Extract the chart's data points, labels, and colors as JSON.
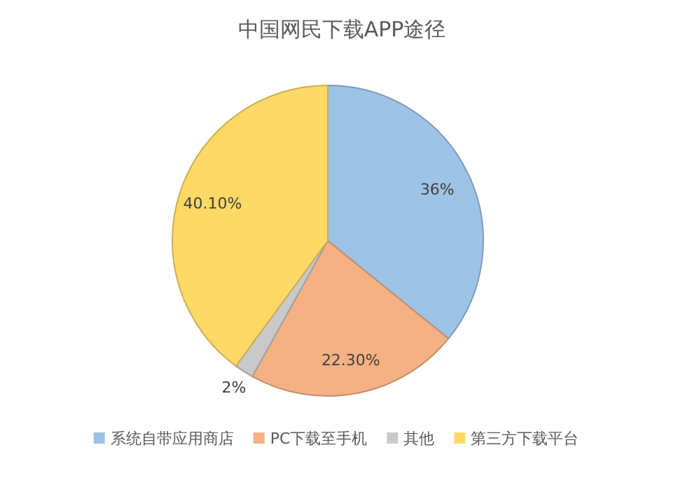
{
  "chart_data": {
    "type": "pie",
    "title": "中国网民下载APP途径",
    "categories": [
      "系统自带应用商店",
      "PC下载至手机",
      "其他",
      "第三方下载平台"
    ],
    "values": [
      36,
      22.3,
      2,
      40.1
    ],
    "value_labels": [
      "36%",
      "22.30%",
      "2%",
      "40.10%"
    ],
    "colors": [
      "#9dc3e6",
      "#f4b183",
      "#c9c9c9",
      "#ffd966"
    ],
    "legend": "bottom"
  }
}
